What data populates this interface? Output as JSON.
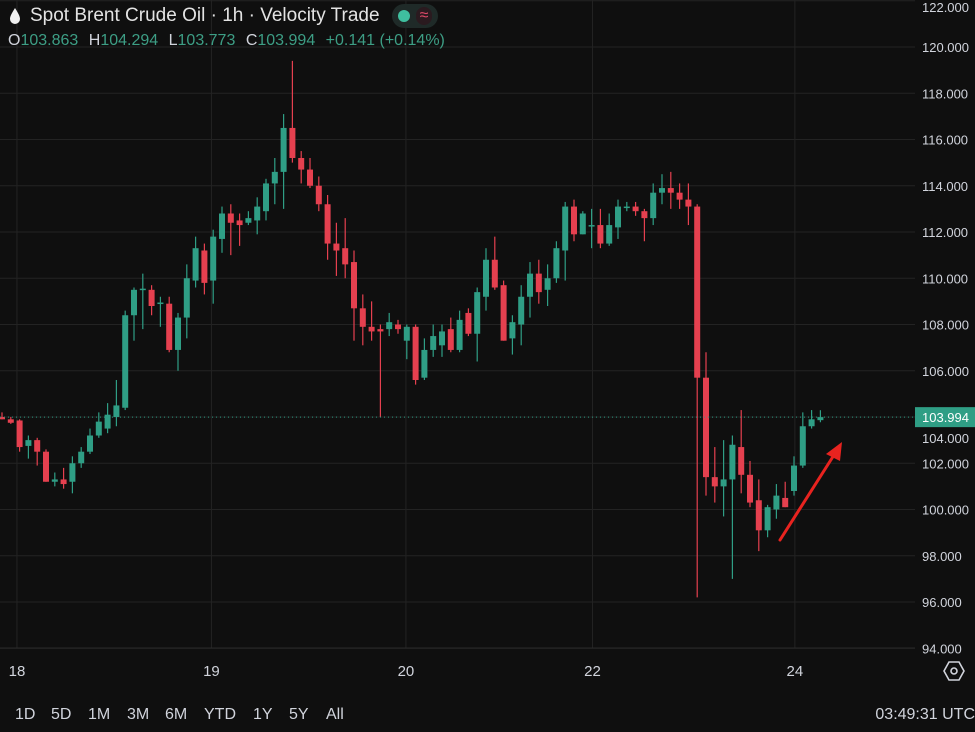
{
  "header": {
    "title": "Spot Brent Crude Oil · 1h · Velocity Trade",
    "status_icon": "market-open-dot-icon",
    "approx_icon": "≈",
    "ohlc": {
      "o_label": "O",
      "o": "103.863",
      "h_label": "H",
      "h": "104.294",
      "l_label": "L",
      "l": "103.773",
      "c_label": "C",
      "c": "103.994",
      "change": "+0.141 (+0.14%)"
    }
  },
  "colors": {
    "up": "#2f9e85",
    "down": "#e5404f",
    "background": "#0f0f0f",
    "grid": "#232323",
    "annotation": "#e8231f"
  },
  "chart_data": {
    "type": "candlestick",
    "interval": "1h",
    "last_price": "103.994",
    "ylim": [
      93.4,
      122.2
    ],
    "y_ticks": [
      "94.000",
      "96.000",
      "98.000",
      "100.000",
      "102.000",
      "104.000",
      "106.000",
      "108.000",
      "110.000",
      "112.000",
      "114.000",
      "116.000",
      "118.000",
      "120.000",
      "122.000"
    ],
    "y_tick_values": [
      94,
      96,
      98,
      100,
      102,
      104,
      106,
      108,
      110,
      112,
      114,
      116,
      118,
      120,
      122
    ],
    "x_labels": [
      {
        "label": "18",
        "candle": 1.7
      },
      {
        "label": "19",
        "candle": 23.8
      },
      {
        "label": "20",
        "candle": 45.9
      },
      {
        "label": "22",
        "candle": 67.1
      },
      {
        "label": "24",
        "candle": 90.1
      }
    ],
    "grid": true,
    "annotation": "red arrow pointing up-right near latest candles",
    "candles_ohlc": [
      [
        104.0,
        104.2,
        103.9,
        103.9
      ],
      [
        103.9,
        104.0,
        103.7,
        103.75
      ],
      [
        103.85,
        103.9,
        102.5,
        102.7
      ],
      [
        102.75,
        103.2,
        102.2,
        103.0
      ],
      [
        103.0,
        103.1,
        101.9,
        102.5
      ],
      [
        102.5,
        102.6,
        101.2,
        101.2
      ],
      [
        101.2,
        101.6,
        101.0,
        101.3
      ],
      [
        101.3,
        101.8,
        100.9,
        101.1
      ],
      [
        101.2,
        102.3,
        100.7,
        102.0
      ],
      [
        102.0,
        102.7,
        101.8,
        102.5
      ],
      [
        102.5,
        103.5,
        102.4,
        103.2
      ],
      [
        103.2,
        104.2,
        103.1,
        103.8
      ],
      [
        103.5,
        104.6,
        103.3,
        104.1
      ],
      [
        104.0,
        105.6,
        103.6,
        104.5
      ],
      [
        104.4,
        108.6,
        104.3,
        108.4
      ],
      [
        108.4,
        109.6,
        107.3,
        109.5
      ],
      [
        109.5,
        110.2,
        107.8,
        109.55
      ],
      [
        109.5,
        109.7,
        108.4,
        108.8
      ],
      [
        108.9,
        109.2,
        107.9,
        108.95
      ],
      [
        108.9,
        109.2,
        106.8,
        106.9
      ],
      [
        106.9,
        108.5,
        106.0,
        108.3
      ],
      [
        108.3,
        110.6,
        107.4,
        110.0
      ],
      [
        109.9,
        111.8,
        109.6,
        111.3
      ],
      [
        111.2,
        111.5,
        109.3,
        109.8
      ],
      [
        109.9,
        112.1,
        108.9,
        111.8
      ],
      [
        111.7,
        113.1,
        111.1,
        112.8
      ],
      [
        112.8,
        113.2,
        111.0,
        112.4
      ],
      [
        112.5,
        112.8,
        111.4,
        112.3
      ],
      [
        112.4,
        112.9,
        112.3,
        112.6
      ],
      [
        112.5,
        113.5,
        111.9,
        113.1
      ],
      [
        112.9,
        114.3,
        112.5,
        114.1
      ],
      [
        114.1,
        115.2,
        113.2,
        114.6
      ],
      [
        114.6,
        117.1,
        113.0,
        116.5
      ],
      [
        116.5,
        119.4,
        115.0,
        115.2
      ],
      [
        115.2,
        115.5,
        114.1,
        114.7
      ],
      [
        114.7,
        115.2,
        113.9,
        114.0
      ],
      [
        114.0,
        114.4,
        112.9,
        113.2
      ],
      [
        113.2,
        113.6,
        110.8,
        111.5
      ],
      [
        111.5,
        112.4,
        110.1,
        111.2
      ],
      [
        111.3,
        112.6,
        110.0,
        110.6
      ],
      [
        110.7,
        111.2,
        107.3,
        108.7
      ],
      [
        108.7,
        109.3,
        107.1,
        107.9
      ],
      [
        107.9,
        109.0,
        107.3,
        107.7
      ],
      [
        107.8,
        108.0,
        104.0,
        107.7
      ],
      [
        107.8,
        108.5,
        107.5,
        108.1
      ],
      [
        108.0,
        108.2,
        107.6,
        107.8
      ],
      [
        107.3,
        108.0,
        106.5,
        107.9
      ],
      [
        107.9,
        108.0,
        105.4,
        105.6
      ],
      [
        105.7,
        107.4,
        105.6,
        106.9
      ],
      [
        106.9,
        108.0,
        106.6,
        107.5
      ],
      [
        107.1,
        108.0,
        106.6,
        107.7
      ],
      [
        107.8,
        108.3,
        106.8,
        106.9
      ],
      [
        106.9,
        108.6,
        106.8,
        108.2
      ],
      [
        108.5,
        108.7,
        107.5,
        107.6
      ],
      [
        107.6,
        109.6,
        106.4,
        109.4
      ],
      [
        109.2,
        111.3,
        108.6,
        110.8
      ],
      [
        110.8,
        111.8,
        109.5,
        109.6
      ],
      [
        109.7,
        109.9,
        107.3,
        107.3
      ],
      [
        107.4,
        108.4,
        106.7,
        108.1
      ],
      [
        108.0,
        109.7,
        107.1,
        109.2
      ],
      [
        109.2,
        110.7,
        108.3,
        110.2
      ],
      [
        110.2,
        110.8,
        108.9,
        109.4
      ],
      [
        109.5,
        110.6,
        108.8,
        110.0
      ],
      [
        110.0,
        111.6,
        109.8,
        111.3
      ],
      [
        111.2,
        113.3,
        109.9,
        113.1
      ],
      [
        113.1,
        113.4,
        111.6,
        111.9
      ],
      [
        111.9,
        112.9,
        111.9,
        112.8
      ],
      [
        112.3,
        113.0,
        111.3,
        112.3
      ],
      [
        112.3,
        113.0,
        111.3,
        111.5
      ],
      [
        111.5,
        112.8,
        111.4,
        112.3
      ],
      [
        112.2,
        113.4,
        111.7,
        113.1
      ],
      [
        113.1,
        113.3,
        112.9,
        113.1
      ],
      [
        113.1,
        113.3,
        112.7,
        112.9
      ],
      [
        112.9,
        113.0,
        111.6,
        112.6
      ],
      [
        112.6,
        114.1,
        112.3,
        113.7
      ],
      [
        113.7,
        114.5,
        113.2,
        113.9
      ],
      [
        113.9,
        114.6,
        113.0,
        113.7
      ],
      [
        113.7,
        114.1,
        113.0,
        113.4
      ],
      [
        113.4,
        114.1,
        112.3,
        113.1
      ],
      [
        113.1,
        113.2,
        96.2,
        105.7
      ],
      [
        105.7,
        106.8,
        100.6,
        101.4
      ],
      [
        101.4,
        102.7,
        100.3,
        101.0
      ],
      [
        101.0,
        103.0,
        99.7,
        101.3
      ],
      [
        101.3,
        103.2,
        97.0,
        102.8
      ],
      [
        102.7,
        104.3,
        100.7,
        101.5
      ],
      [
        101.5,
        102.1,
        100.1,
        100.3
      ],
      [
        100.4,
        101.3,
        98.2,
        99.1
      ],
      [
        99.1,
        100.2,
        98.8,
        100.1
      ],
      [
        100.0,
        101.1,
        99.6,
        100.6
      ],
      [
        100.5,
        101.2,
        100.1,
        100.1
      ],
      [
        100.8,
        102.3,
        100.6,
        101.9
      ],
      [
        101.9,
        104.2,
        101.8,
        103.6
      ],
      [
        103.6,
        104.3,
        103.5,
        103.9
      ],
      [
        103.863,
        104.294,
        103.773,
        103.994
      ]
    ]
  },
  "ranges": [
    "1D",
    "5D",
    "1M",
    "3M",
    "6M",
    "YTD",
    "1Y",
    "5Y",
    "All"
  ],
  "clock": "03:49:31 UTC",
  "settings_icon": "gear-icon"
}
